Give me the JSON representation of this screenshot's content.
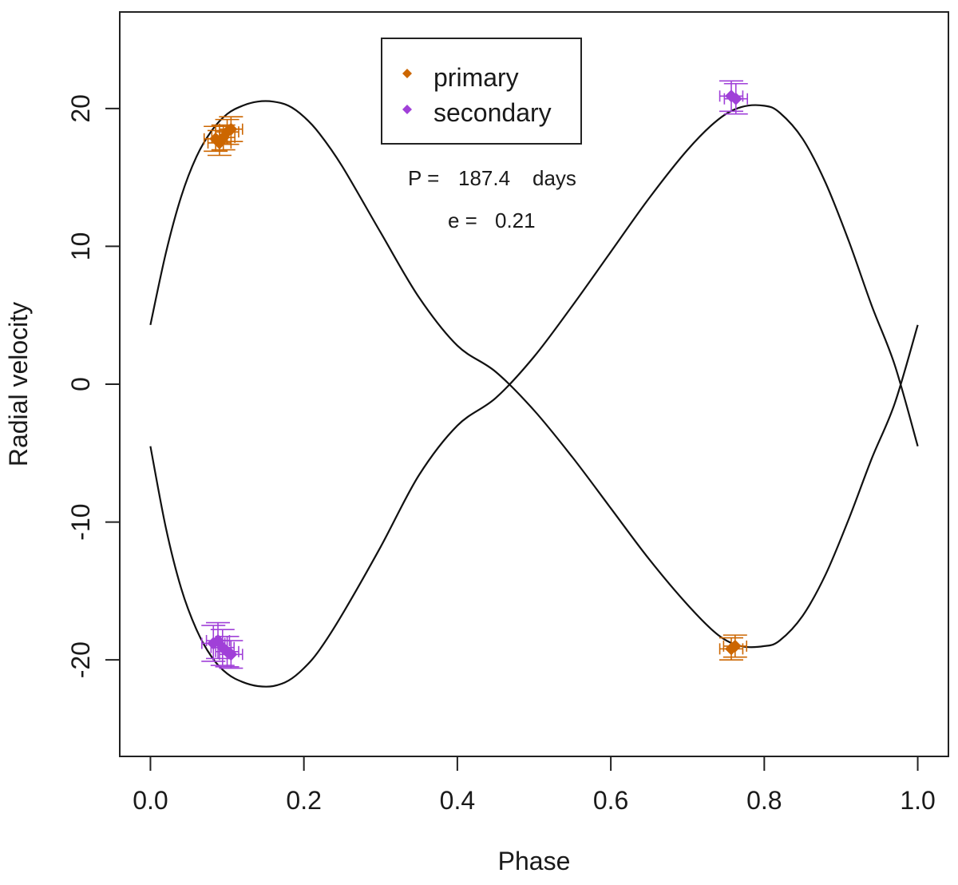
{
  "chart_data": {
    "type": "scatter",
    "xlabel": "Phase",
    "ylabel": "Radial velocity",
    "xlim": [
      -0.04,
      1.04
    ],
    "ylim": [
      -27,
      27
    ],
    "x_ticks": [
      "0.0",
      "0.2",
      "0.4",
      "0.6",
      "0.8",
      "1.0"
    ],
    "y_ticks": [
      "-20",
      "-10",
      "0",
      "10",
      "20"
    ],
    "x_tick_values": [
      0,
      0.2,
      0.4,
      0.6,
      0.8,
      1.0
    ],
    "y_tick_values": [
      -20,
      -10,
      0,
      10,
      20
    ],
    "legend_position": "top-center",
    "grid": false,
    "annotations": [
      {
        "label": "P = ",
        "value": "187.4",
        "unit": "days"
      },
      {
        "label": "e = ",
        "value": "0.21",
        "unit": ""
      }
    ],
    "series": [
      {
        "name": "primary",
        "color": "#cc6600",
        "points": [
          {
            "x": 0.085,
            "y": 17.8,
            "yerr": 0.9,
            "xerr": 0.015
          },
          {
            "x": 0.09,
            "y": 17.5,
            "yerr": 0.9,
            "xerr": 0.015
          },
          {
            "x": 0.095,
            "y": 17.9,
            "yerr": 0.9,
            "xerr": 0.015
          },
          {
            "x": 0.1,
            "y": 18.3,
            "yerr": 0.9,
            "xerr": 0.015
          },
          {
            "x": 0.105,
            "y": 18.5,
            "yerr": 0.9,
            "xerr": 0.015
          },
          {
            "x": 0.757,
            "y": -19.2,
            "yerr": 0.8,
            "xerr": 0.015
          },
          {
            "x": 0.762,
            "y": -19.0,
            "yerr": 0.8,
            "xerr": 0.015
          }
        ],
        "curve": [
          [
            0.0,
            4.3
          ],
          [
            0.02,
            9.5
          ],
          [
            0.04,
            13.6
          ],
          [
            0.06,
            16.5
          ],
          [
            0.08,
            18.4
          ],
          [
            0.1,
            19.6
          ],
          [
            0.12,
            20.2
          ],
          [
            0.14,
            20.5
          ],
          [
            0.16,
            20.5
          ],
          [
            0.18,
            20.2
          ],
          [
            0.2,
            19.4
          ],
          [
            0.22,
            18.2
          ],
          [
            0.25,
            15.8
          ],
          [
            0.3,
            11.0
          ],
          [
            0.35,
            6.3
          ],
          [
            0.4,
            2.8
          ],
          [
            0.45,
            0.9
          ],
          [
            0.5,
            -1.9
          ],
          [
            0.55,
            -5.3
          ],
          [
            0.6,
            -9.0
          ],
          [
            0.65,
            -12.7
          ],
          [
            0.7,
            -16.0
          ],
          [
            0.74,
            -18.2
          ],
          [
            0.77,
            -19.0
          ],
          [
            0.8,
            -19.0
          ],
          [
            0.82,
            -18.6
          ],
          [
            0.85,
            -16.8
          ],
          [
            0.88,
            -13.8
          ],
          [
            0.91,
            -9.8
          ],
          [
            0.94,
            -5.4
          ],
          [
            0.97,
            -1.4
          ],
          [
            1.0,
            4.3
          ]
        ]
      },
      {
        "name": "secondary",
        "color": "#a040d8",
        "points": [
          {
            "x": 0.082,
            "y": -18.8,
            "yerr": 1.3,
            "xerr": 0.015
          },
          {
            "x": 0.088,
            "y": -18.6,
            "yerr": 1.3,
            "xerr": 0.015
          },
          {
            "x": 0.094,
            "y": -19.1,
            "yerr": 1.3,
            "xerr": 0.015
          },
          {
            "x": 0.1,
            "y": -19.4,
            "yerr": 1.1,
            "xerr": 0.015
          },
          {
            "x": 0.105,
            "y": -19.6,
            "yerr": 1.0,
            "xerr": 0.015
          },
          {
            "x": 0.757,
            "y": 20.9,
            "yerr": 1.1,
            "xerr": 0.015
          },
          {
            "x": 0.763,
            "y": 20.7,
            "yerr": 1.1,
            "xerr": 0.015
          }
        ],
        "curve": [
          [
            0.0,
            -4.5
          ],
          [
            0.02,
            -10.4
          ],
          [
            0.04,
            -14.8
          ],
          [
            0.06,
            -17.8
          ],
          [
            0.08,
            -19.8
          ],
          [
            0.1,
            -21.0
          ],
          [
            0.12,
            -21.6
          ],
          [
            0.14,
            -21.9
          ],
          [
            0.16,
            -21.9
          ],
          [
            0.18,
            -21.5
          ],
          [
            0.2,
            -20.6
          ],
          [
            0.22,
            -19.3
          ],
          [
            0.25,
            -16.7
          ],
          [
            0.3,
            -11.8
          ],
          [
            0.35,
            -6.6
          ],
          [
            0.4,
            -3.0
          ],
          [
            0.45,
            -1.0
          ],
          [
            0.5,
            2.0
          ],
          [
            0.55,
            5.7
          ],
          [
            0.6,
            9.6
          ],
          [
            0.65,
            13.5
          ],
          [
            0.7,
            17.0
          ],
          [
            0.74,
            19.2
          ],
          [
            0.77,
            20.1
          ],
          [
            0.8,
            20.2
          ],
          [
            0.82,
            19.7
          ],
          [
            0.85,
            17.8
          ],
          [
            0.88,
            14.6
          ],
          [
            0.91,
            10.4
          ],
          [
            0.94,
            5.7
          ],
          [
            0.97,
            1.4
          ],
          [
            1.0,
            -4.5
          ]
        ]
      }
    ]
  }
}
